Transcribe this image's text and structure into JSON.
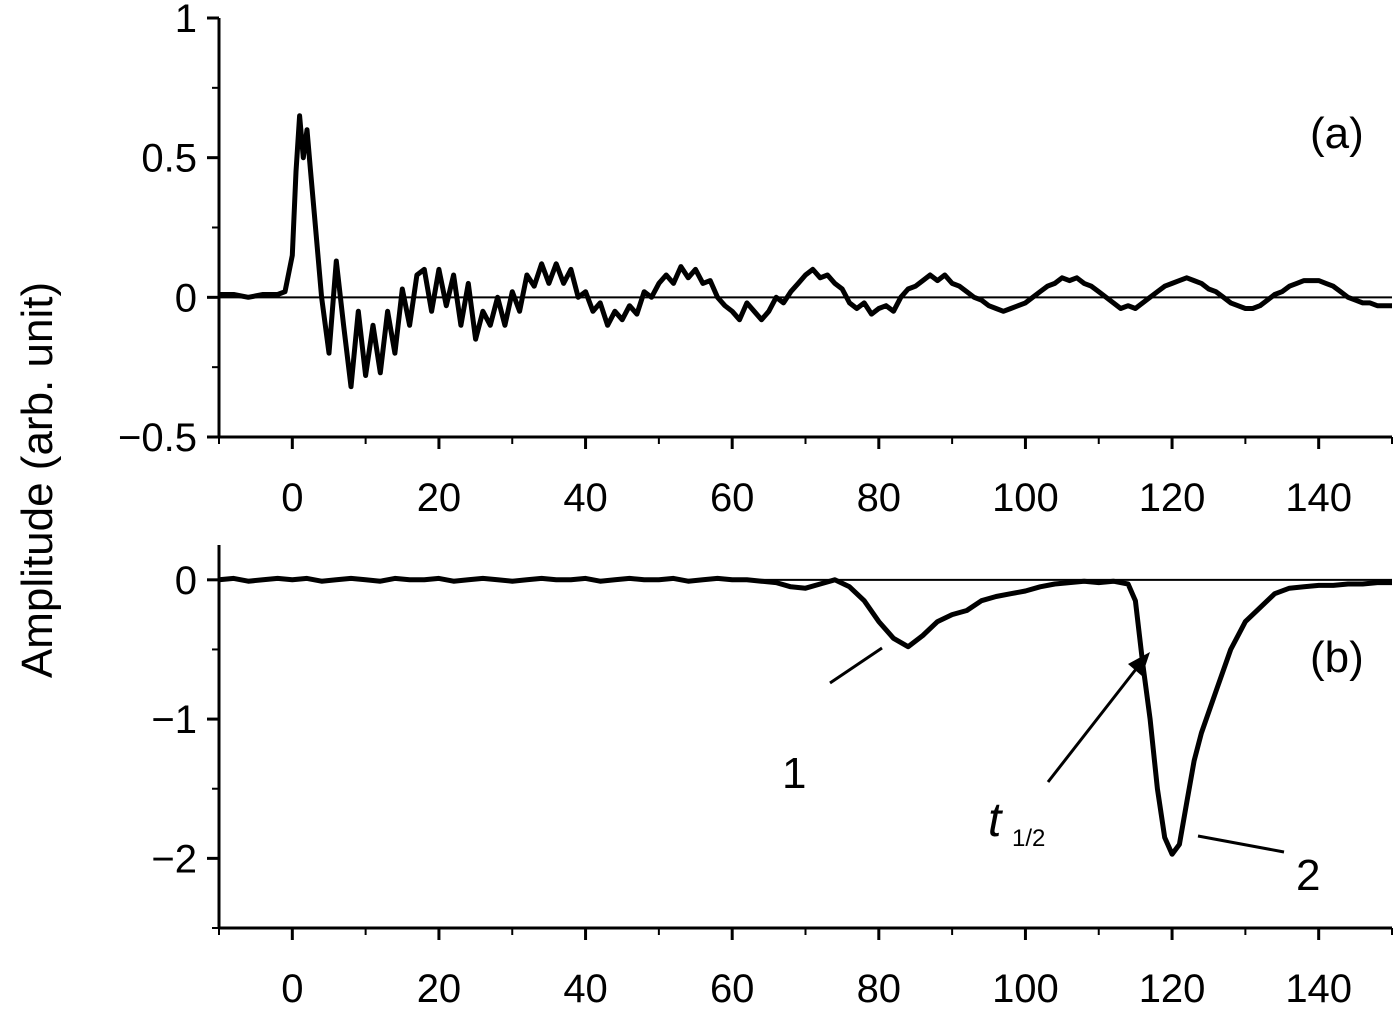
{
  "ylabel": "Amplitude (arb. unit)",
  "chart_data": [
    {
      "type": "line",
      "label": "(a)",
      "xlim": [
        -10,
        150
      ],
      "xticks": [
        0,
        20,
        40,
        60,
        80,
        100,
        120,
        140
      ],
      "xminorticks": [
        -10,
        10,
        30,
        50,
        70,
        90,
        110,
        130,
        150
      ],
      "ylim": [
        -0.5,
        1
      ],
      "yticks": [
        {
          "value": -0.5,
          "label": "−0.5"
        },
        0,
        0.5,
        1
      ],
      "yminorticks": [
        -0.25,
        0.25,
        0.75
      ],
      "zero_line": true,
      "series": [
        {
          "color": "#000000",
          "x": [
            -10,
            -8,
            -6,
            -4,
            -2,
            -1,
            0,
            0.5,
            1,
            1.5,
            2,
            2.5,
            3,
            4,
            5,
            6,
            7,
            8,
            9,
            10,
            11,
            12,
            13,
            14,
            15,
            16,
            17,
            18,
            19,
            20,
            21,
            22,
            23,
            24,
            25,
            26,
            27,
            28,
            29,
            30,
            31,
            32,
            33,
            34,
            35,
            36,
            37,
            38,
            39,
            40,
            41,
            42,
            43,
            44,
            45,
            46,
            47,
            48,
            49,
            50,
            51,
            52,
            53,
            54,
            55,
            56,
            57,
            58,
            59,
            60,
            61,
            62,
            63,
            64,
            65,
            66,
            67,
            68,
            69,
            70,
            71,
            72,
            73,
            74,
            75,
            76,
            77,
            78,
            79,
            80,
            81,
            82,
            83,
            84,
            85,
            86,
            87,
            88,
            89,
            90,
            91,
            92,
            93,
            94,
            95,
            96,
            97,
            98,
            99,
            100,
            101,
            102,
            103,
            104,
            105,
            106,
            107,
            108,
            109,
            110,
            111,
            112,
            113,
            114,
            115,
            116,
            117,
            118,
            119,
            120,
            121,
            122,
            123,
            124,
            125,
            126,
            127,
            128,
            129,
            130,
            131,
            132,
            133,
            134,
            135,
            136,
            137,
            138,
            139,
            140,
            141,
            142,
            143,
            144,
            145,
            146,
            147,
            148,
            149,
            150
          ],
          "values": [
            0.01,
            0.01,
            0.0,
            0.01,
            0.01,
            0.02,
            0.15,
            0.45,
            0.65,
            0.5,
            0.6,
            0.45,
            0.3,
            0.0,
            -0.2,
            0.13,
            -0.1,
            -0.32,
            -0.05,
            -0.28,
            -0.1,
            -0.27,
            -0.05,
            -0.2,
            0.03,
            -0.1,
            0.08,
            0.1,
            -0.05,
            0.1,
            -0.03,
            0.08,
            -0.1,
            0.05,
            -0.15,
            -0.05,
            -0.1,
            0.0,
            -0.1,
            0.02,
            -0.05,
            0.08,
            0.04,
            0.12,
            0.05,
            0.12,
            0.05,
            0.1,
            0.0,
            0.02,
            -0.05,
            -0.02,
            -0.1,
            -0.05,
            -0.08,
            -0.03,
            -0.06,
            0.02,
            0.0,
            0.05,
            0.08,
            0.05,
            0.11,
            0.07,
            0.1,
            0.05,
            0.06,
            0.0,
            -0.03,
            -0.05,
            -0.08,
            -0.02,
            -0.05,
            -0.08,
            -0.05,
            0.0,
            -0.02,
            0.02,
            0.05,
            0.08,
            0.1,
            0.07,
            0.08,
            0.05,
            0.03,
            -0.02,
            -0.04,
            -0.02,
            -0.06,
            -0.04,
            -0.03,
            -0.05,
            0.0,
            0.03,
            0.04,
            0.06,
            0.08,
            0.06,
            0.08,
            0.05,
            0.04,
            0.02,
            0.0,
            -0.01,
            -0.03,
            -0.04,
            -0.05,
            -0.04,
            -0.03,
            -0.02,
            0.0,
            0.02,
            0.04,
            0.05,
            0.07,
            0.06,
            0.07,
            0.05,
            0.04,
            0.02,
            0.0,
            -0.02,
            -0.04,
            -0.03,
            -0.04,
            -0.02,
            0.0,
            0.02,
            0.04,
            0.05,
            0.06,
            0.07,
            0.06,
            0.05,
            0.03,
            0.02,
            0.0,
            -0.02,
            -0.03,
            -0.04,
            -0.04,
            -0.03,
            -0.01,
            0.01,
            0.02,
            0.04,
            0.05,
            0.06,
            0.06,
            0.06,
            0.05,
            0.04,
            0.02,
            0.0,
            -0.01,
            -0.02,
            -0.02,
            -0.03,
            -0.03,
            -0.03
          ]
        }
      ]
    },
    {
      "type": "line",
      "label": "(b)",
      "xlim": [
        -10,
        150
      ],
      "xticks": [
        0,
        20,
        40,
        60,
        80,
        100,
        120,
        140
      ],
      "xminorticks": [
        -10,
        10,
        30,
        50,
        70,
        90,
        110,
        130,
        150
      ],
      "ylim": [
        -2.5,
        0.25
      ],
      "yticks": [
        {
          "value": -2,
          "label": "−2"
        },
        {
          "value": -1,
          "label": "−1"
        },
        0
      ],
      "yminorticks": [
        -2.5,
        -1.5,
        -0.5
      ],
      "zero_line": true,
      "annotations": [
        {
          "text": "1"
        },
        {
          "text": "t",
          "sub": "1/2"
        },
        {
          "text": "2"
        }
      ],
      "series": [
        {
          "color": "#000000",
          "x": [
            -10,
            -8,
            -6,
            -4,
            -2,
            0,
            2,
            4,
            6,
            8,
            10,
            12,
            14,
            16,
            18,
            20,
            22,
            24,
            26,
            28,
            30,
            32,
            34,
            36,
            38,
            40,
            42,
            44,
            46,
            48,
            50,
            52,
            54,
            56,
            58,
            60,
            62,
            64,
            66,
            68,
            70,
            72,
            74,
            76,
            78,
            80,
            82,
            84,
            86,
            88,
            90,
            92,
            94,
            96,
            98,
            100,
            102,
            104,
            106,
            108,
            110,
            112,
            114,
            115,
            116,
            117,
            118,
            119,
            120,
            121,
            122,
            123,
            124,
            126,
            128,
            130,
            132,
            134,
            136,
            138,
            140,
            142,
            144,
            146,
            148,
            150
          ],
          "values": [
            0.0,
            0.01,
            -0.01,
            0.0,
            0.01,
            0.0,
            0.01,
            -0.01,
            0.0,
            0.01,
            0.0,
            -0.01,
            0.01,
            0.0,
            0.0,
            0.01,
            -0.01,
            0.0,
            0.01,
            0.0,
            -0.01,
            0.0,
            0.01,
            0.0,
            0.0,
            0.01,
            -0.01,
            0.0,
            0.01,
            0.0,
            0.0,
            0.01,
            -0.01,
            0.0,
            0.01,
            0.0,
            0.0,
            -0.01,
            -0.02,
            -0.05,
            -0.06,
            -0.03,
            0.0,
            -0.05,
            -0.15,
            -0.3,
            -0.42,
            -0.48,
            -0.4,
            -0.3,
            -0.25,
            -0.22,
            -0.15,
            -0.12,
            -0.1,
            -0.08,
            -0.05,
            -0.03,
            -0.02,
            -0.01,
            -0.02,
            -0.01,
            -0.03,
            -0.15,
            -0.6,
            -1.0,
            -1.5,
            -1.85,
            -1.97,
            -1.9,
            -1.6,
            -1.3,
            -1.1,
            -0.8,
            -0.5,
            -0.3,
            -0.2,
            -0.1,
            -0.06,
            -0.05,
            -0.04,
            -0.04,
            -0.03,
            -0.03,
            -0.02,
            -0.02
          ]
        }
      ]
    }
  ]
}
